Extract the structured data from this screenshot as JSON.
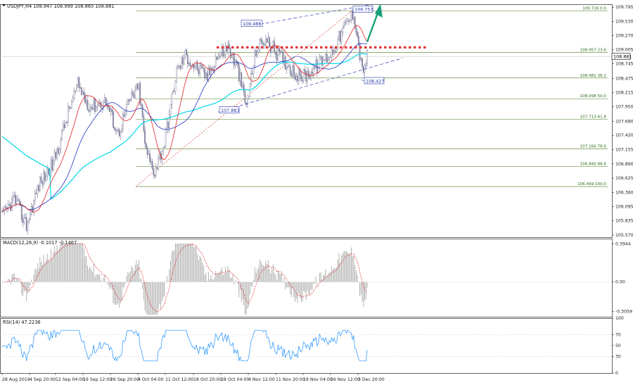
{
  "chart_data": {
    "type": "candlestick",
    "symbol_header": "USDJPY,H4  108.947 108.999 108.865 108.881",
    "current_price": "108.881",
    "price_axis": {
      "ylim": [
        105.53,
        109.85
      ],
      "ticks": [
        "109.795",
        "109.530",
        "109.270",
        "109.005",
        "108.745",
        "108.475",
        "108.215",
        "107.950",
        "107.680",
        "107.420",
        "107.155",
        "106.890",
        "106.625",
        "106.360",
        "106.095",
        "105.835",
        "105.570"
      ]
    },
    "x_axis": {
      "labels": [
        "28 Aug 2019",
        "4 Sep 20:00",
        "12 Sep 04:00",
        "19 Sep 12:00",
        "26 Sep 20:00",
        "4 Oct 04:00",
        "11 Oct 12:00",
        "18 Oct 20:00",
        "28 Oct 04:00",
        "4 Nov 12:00",
        "11 Nov 20:00",
        "19 Nov 04:00",
        "26 Nov 12:00",
        "3 Dec 20:00"
      ]
    },
    "fibonacci": [
      {
        "price": 109.726,
        "label": "109.726  0.0"
      },
      {
        "price": 108.957,
        "label": "108.957  23.6"
      },
      {
        "price": 108.482,
        "label": "108.482  38.2"
      },
      {
        "price": 108.098,
        "label": "108.098  50.0"
      },
      {
        "price": 107.713,
        "label": "107.713  61.8"
      },
      {
        "price": 107.166,
        "label": "107.166  78.6"
      },
      {
        "price": 106.84,
        "label": "106.840  88.6"
      },
      {
        "price": 106.469,
        "label": "106.469  100.0"
      }
    ],
    "annotations": [
      {
        "text": "109.488",
        "price": 109.488
      },
      {
        "text": "109.753",
        "price": 109.753
      },
      {
        "text": "107.883",
        "price": 107.883
      },
      {
        "text": "108.427",
        "price": 108.427
      }
    ],
    "resistance_level": 109.05,
    "macd": {
      "header": "MACD(12,26,9) -0.1017 -0.1467",
      "ticks": [
        "0.3944",
        "0.00",
        "-0.3059"
      ],
      "ylim": [
        -0.36,
        0.45
      ]
    },
    "rsi": {
      "header": "RSI(14) 47.2236",
      "ticks": [
        "100",
        "70",
        "50",
        "30",
        "0"
      ],
      "levels": [
        70,
        30
      ],
      "ylim": [
        0,
        100
      ]
    },
    "colors": {
      "bull": "#6b7a9a",
      "bear": "#8a8aa8",
      "ma_red": "#e02020",
      "ma_blue": "#2030c0",
      "ma_cyan": "#00d8e8",
      "fib": "#4e7a1e",
      "resistance": "#e03030",
      "arrow": "#19a07a",
      "channel": "#3a3ac0",
      "rsi_line": "#1e90ff",
      "macd_signal": "#e02020",
      "macd_hist": "#a8a8a8"
    }
  }
}
